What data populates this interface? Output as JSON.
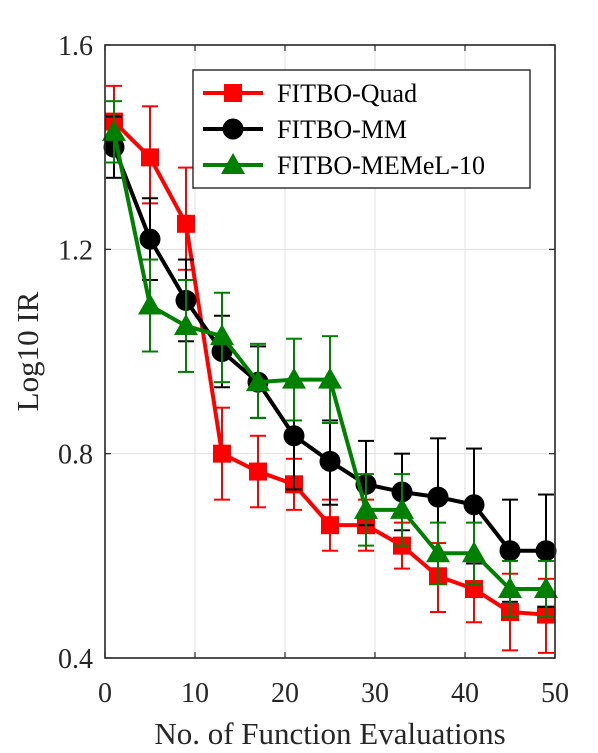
{
  "chart_data": {
    "type": "line",
    "title": "",
    "xlabel": "No. of Function Evaluations",
    "ylabel": "Log10 IR",
    "xlim": [
      0,
      50
    ],
    "ylim": [
      0.4,
      1.6
    ],
    "xticks": [
      "0",
      "10",
      "20",
      "30",
      "40",
      "50"
    ],
    "yticks": [
      "0.4",
      "0.8",
      "1.2",
      "1.6"
    ],
    "grid": true,
    "legend_position": "top-right",
    "x": [
      1,
      5,
      9,
      13,
      17,
      21,
      25,
      29,
      33,
      37,
      41,
      45,
      49
    ],
    "series": [
      {
        "name": "FITBO-Quad",
        "color": "#ff0000",
        "marker": "square",
        "values": [
          1.45,
          1.38,
          1.25,
          0.8,
          0.765,
          0.74,
          0.66,
          0.66,
          0.62,
          0.56,
          0.535,
          0.49,
          0.485
        ],
        "err_low": [
          1.39,
          1.29,
          1.16,
          0.71,
          0.695,
          0.69,
          0.61,
          0.61,
          0.575,
          0.49,
          0.47,
          0.415,
          0.41
        ],
        "err_high": [
          1.52,
          1.48,
          1.36,
          0.89,
          0.835,
          0.79,
          0.71,
          0.71,
          0.665,
          0.625,
          0.6,
          0.565,
          0.555
        ]
      },
      {
        "name": "FITBO-MM",
        "color": "#000000",
        "marker": "circle",
        "values": [
          1.4,
          1.22,
          1.1,
          1.0,
          0.94,
          0.835,
          0.785,
          0.74,
          0.725,
          0.715,
          0.7,
          0.61,
          0.61
        ],
        "err_low": [
          1.34,
          1.14,
          1.02,
          0.93,
          0.87,
          0.73,
          0.7,
          0.66,
          0.65,
          0.6,
          0.585,
          0.51,
          0.5
        ],
        "err_high": [
          1.46,
          1.3,
          1.18,
          1.07,
          1.01,
          0.935,
          0.865,
          0.825,
          0.8,
          0.83,
          0.81,
          0.71,
          0.72
        ]
      },
      {
        "name": "FITBO-MEMeL-10",
        "color": "#008000",
        "marker": "triangle",
        "values": [
          1.43,
          1.09,
          1.05,
          1.03,
          0.94,
          0.945,
          0.945,
          0.69,
          0.69,
          0.605,
          0.605,
          0.535,
          0.535
        ],
        "err_low": [
          1.37,
          1.0,
          0.96,
          0.94,
          0.87,
          0.865,
          0.86,
          0.62,
          0.62,
          0.545,
          0.545,
          0.48,
          0.48
        ],
        "err_high": [
          1.49,
          1.18,
          1.14,
          1.115,
          1.015,
          1.025,
          1.03,
          0.76,
          0.76,
          0.665,
          0.665,
          0.59,
          0.59
        ]
      }
    ]
  }
}
